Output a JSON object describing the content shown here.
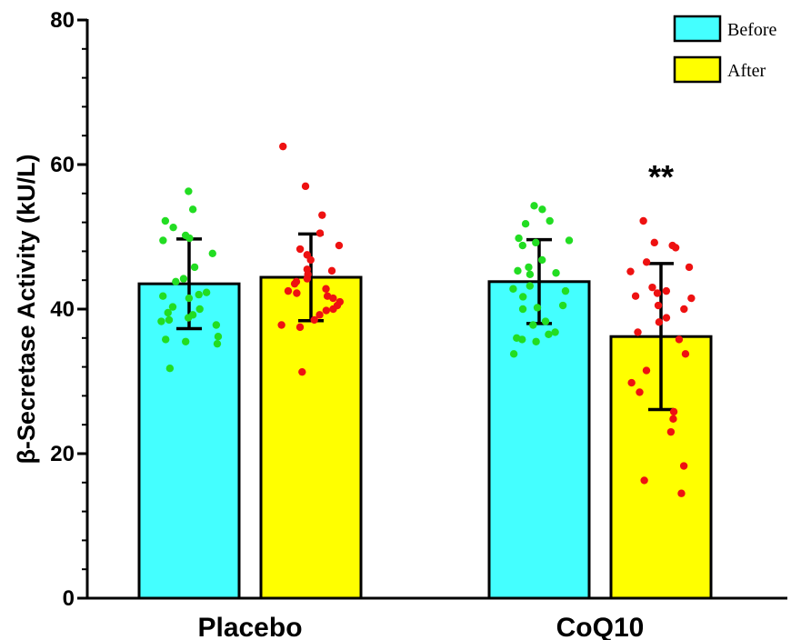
{
  "chart_data": {
    "type": "bar",
    "ylabel": "β-Secretase Activity (kU/L)",
    "xlabel": "",
    "ylim": [
      0,
      80
    ],
    "yticks": [
      "0",
      "20",
      "40",
      "60",
      "80"
    ],
    "categories": [
      "Placebo",
      "CoQ10"
    ],
    "legend_position": "top-right",
    "series": [
      {
        "name": "Before",
        "color": "#44FFFF",
        "dot_color": "#22DD22",
        "values": [
          43.5,
          43.8
        ],
        "error": [
          6.2,
          5.8
        ],
        "points": [
          [
            56.3,
            53.8,
            52.2,
            51.3,
            50.2,
            49.8,
            49.5,
            47.7,
            45.8,
            44.2,
            43.8,
            42.3,
            42.0,
            41.8,
            41.5,
            40.3,
            40.0,
            39.5,
            39.2,
            38.8,
            38.5,
            38.3,
            37.8,
            36.2,
            35.8,
            35.5,
            35.2,
            31.8
          ],
          [
            54.3,
            53.8,
            52.2,
            51.8,
            49.8,
            49.5,
            49.2,
            48.8,
            46.8,
            45.8,
            45.3,
            45.0,
            44.8,
            43.2,
            42.8,
            42.5,
            41.7,
            40.5,
            40.2,
            40.0,
            38.3,
            37.8,
            36.8,
            36.5,
            36.0,
            35.8,
            35.5,
            33.8
          ]
        ]
      },
      {
        "name": "After",
        "color": "#FFFF00",
        "dot_color": "#EE1111",
        "values": [
          44.4,
          36.2
        ],
        "error": [
          6.0,
          10.1
        ],
        "points": [
          [
            62.5,
            57.0,
            53.0,
            50.5,
            48.8,
            48.3,
            47.5,
            46.8,
            45.5,
            45.3,
            44.8,
            44.2,
            43.8,
            43.5,
            42.8,
            42.5,
            42.2,
            41.8,
            41.5,
            41.0,
            40.5,
            40.0,
            39.8,
            39.2,
            38.5,
            37.8,
            37.5,
            31.3
          ],
          [
            52.2,
            49.2,
            48.8,
            48.5,
            46.5,
            45.8,
            45.2,
            43.0,
            42.5,
            42.2,
            41.8,
            41.5,
            40.5,
            40.0,
            38.8,
            38.2,
            36.8,
            35.8,
            33.8,
            31.5,
            29.8,
            28.5,
            25.8,
            24.8,
            23.0,
            18.3,
            16.3,
            14.5
          ]
        ]
      }
    ],
    "annotations": [
      {
        "category": "CoQ10",
        "series": "After",
        "text": "**"
      }
    ]
  }
}
